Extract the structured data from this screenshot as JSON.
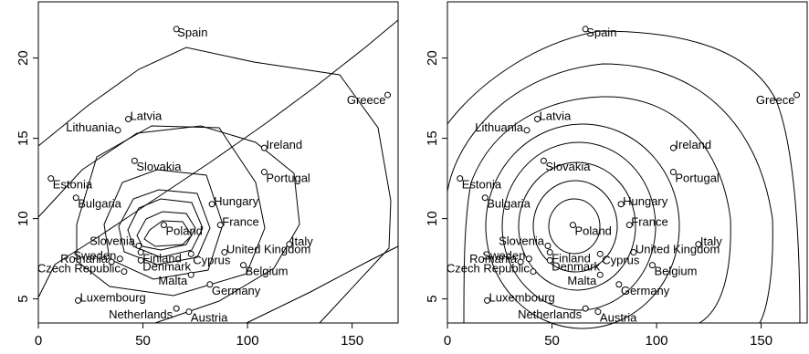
{
  "chart_data": [
    {
      "type": "scatter",
      "title": "",
      "xlabel": "",
      "ylabel": "",
      "xlim": [
        0,
        172
      ],
      "ylim": [
        3.5,
        23.5
      ],
      "x_ticks": [
        0,
        50,
        100,
        150
      ],
      "y_ticks": [
        5,
        10,
        15,
        20
      ],
      "grid": false,
      "contours": true,
      "points": [
        {
          "label": "Spain",
          "x": 66,
          "y": 21.8
        },
        {
          "label": "Greece",
          "x": 167,
          "y": 17.7
        },
        {
          "label": "Latvia",
          "x": 43,
          "y": 16.2
        },
        {
          "label": "Lithuania",
          "x": 38,
          "y": 15.5
        },
        {
          "label": "Ireland",
          "x": 108,
          "y": 14.4
        },
        {
          "label": "Slovakia",
          "x": 46,
          "y": 13.6
        },
        {
          "label": "Portugal",
          "x": 108,
          "y": 12.9
        },
        {
          "label": "Estonia",
          "x": 6,
          "y": 12.5
        },
        {
          "label": "Bulgaria",
          "x": 18,
          "y": 11.3
        },
        {
          "label": "Hungary",
          "x": 83,
          "y": 10.9
        },
        {
          "label": "France",
          "x": 87,
          "y": 9.6
        },
        {
          "label": "Poland",
          "x": 60,
          "y": 9.6
        },
        {
          "label": "Italy",
          "x": 120,
          "y": 8.4
        },
        {
          "label": "Slovenia",
          "x": 48,
          "y": 8.3
        },
        {
          "label": "United Kingdom",
          "x": 89,
          "y": 7.9
        },
        {
          "label": "Finland",
          "x": 49,
          "y": 7.9
        },
        {
          "label": "Cyprus",
          "x": 73,
          "y": 7.8
        },
        {
          "label": "Sweden",
          "x": 39,
          "y": 7.5
        },
        {
          "label": "Denmark",
          "x": 49,
          "y": 7.4
        },
        {
          "label": "Romania",
          "x": 35,
          "y": 7.3
        },
        {
          "label": "Belgium",
          "x": 98,
          "y": 7.1
        },
        {
          "label": "Czech Republic",
          "x": 41,
          "y": 6.7
        },
        {
          "label": "Malta",
          "x": 73,
          "y": 6.5
        },
        {
          "label": "Germany",
          "x": 82,
          "y": 5.9
        },
        {
          "label": "Luxembourg",
          "x": 19,
          "y": 4.9
        },
        {
          "label": "Netherlands",
          "x": 66,
          "y": 4.4
        },
        {
          "label": "Austria",
          "x": 72,
          "y": 4.2
        }
      ]
    },
    {
      "type": "scatter",
      "title": "",
      "xlabel": "",
      "ylabel": "",
      "xlim": [
        0,
        172
      ],
      "ylim": [
        3.5,
        23.5
      ],
      "x_ticks": [
        0,
        50,
        100,
        150
      ],
      "y_ticks": [
        5,
        10,
        15,
        20
      ],
      "grid": false,
      "contours": true,
      "points": [
        {
          "label": "Spain",
          "x": 66,
          "y": 21.8
        },
        {
          "label": "Greece",
          "x": 167,
          "y": 17.7
        },
        {
          "label": "Latvia",
          "x": 43,
          "y": 16.2
        },
        {
          "label": "Lithuania",
          "x": 38,
          "y": 15.5
        },
        {
          "label": "Ireland",
          "x": 108,
          "y": 14.4
        },
        {
          "label": "Slovakia",
          "x": 46,
          "y": 13.6
        },
        {
          "label": "Portugal",
          "x": 108,
          "y": 12.9
        },
        {
          "label": "Estonia",
          "x": 6,
          "y": 12.5
        },
        {
          "label": "Bulgaria",
          "x": 18,
          "y": 11.3
        },
        {
          "label": "Hungary",
          "x": 83,
          "y": 10.9
        },
        {
          "label": "France",
          "x": 87,
          "y": 9.6
        },
        {
          "label": "Poland",
          "x": 60,
          "y": 9.6
        },
        {
          "label": "Italy",
          "x": 120,
          "y": 8.4
        },
        {
          "label": "Slovenia",
          "x": 48,
          "y": 8.3
        },
        {
          "label": "United Kingdom",
          "x": 89,
          "y": 7.9
        },
        {
          "label": "Finland",
          "x": 49,
          "y": 7.9
        },
        {
          "label": "Cyprus",
          "x": 73,
          "y": 7.8
        },
        {
          "label": "Sweden",
          "x": 39,
          "y": 7.5
        },
        {
          "label": "Denmark",
          "x": 49,
          "y": 7.4
        },
        {
          "label": "Romania",
          "x": 35,
          "y": 7.3
        },
        {
          "label": "Belgium",
          "x": 98,
          "y": 7.1
        },
        {
          "label": "Czech Republic",
          "x": 41,
          "y": 6.7
        },
        {
          "label": "Malta",
          "x": 73,
          "y": 6.5
        },
        {
          "label": "Germany",
          "x": 82,
          "y": 5.9
        },
        {
          "label": "Luxembourg",
          "x": 19,
          "y": 4.9
        },
        {
          "label": "Netherlands",
          "x": 66,
          "y": 4.4
        },
        {
          "label": "Austria",
          "x": 72,
          "y": 4.2
        }
      ]
    }
  ]
}
